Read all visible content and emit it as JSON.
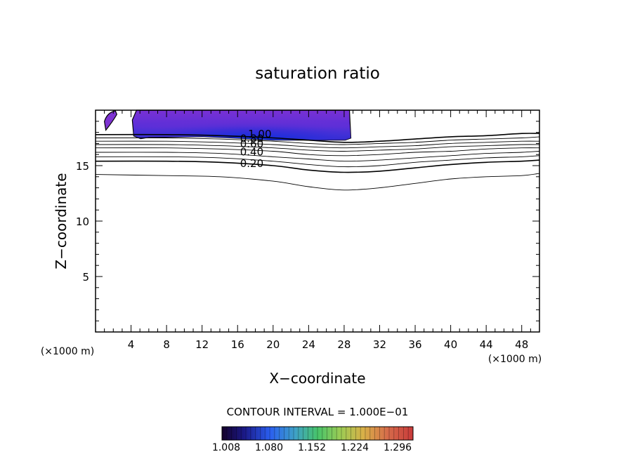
{
  "chart_data": {
    "type": "contour",
    "title": "saturation ratio",
    "xlabel": "X−coordinate",
    "ylabel": "Z−coordinate",
    "x_unit": "(×1000 m)",
    "y_unit": "(×1000 m)",
    "xlim": [
      0,
      50
    ],
    "ylim": [
      0,
      20
    ],
    "x_ticks": [
      "4",
      "8",
      "12",
      "16",
      "20",
      "24",
      "28",
      "32",
      "36",
      "40",
      "44",
      "48"
    ],
    "y_ticks": [
      "5",
      "10",
      "15"
    ],
    "contour_interval_label": "CONTOUR INTERVAL = 1.000E−01",
    "colorbar_ticks": [
      "1.008",
      "1.080",
      "1.152",
      "1.224",
      "1.296"
    ],
    "contour_labels": [
      "0.20",
      "0.40",
      "0.60",
      "0.80",
      "1.00"
    ],
    "contour_lines": [
      {
        "level": "0.10",
        "points": [
          [
            0,
            14.2
          ],
          [
            8,
            14.1
          ],
          [
            14,
            14.0
          ],
          [
            20,
            13.6
          ],
          [
            24,
            13.1
          ],
          [
            28,
            12.8
          ],
          [
            32,
            13.0
          ],
          [
            36,
            13.4
          ],
          [
            40,
            13.8
          ],
          [
            44,
            14.0
          ],
          [
            48,
            14.1
          ],
          [
            50,
            14.3
          ]
        ]
      },
      {
        "level": "0.20",
        "points": [
          [
            0,
            15.4
          ],
          [
            8,
            15.4
          ],
          [
            14,
            15.3
          ],
          [
            20,
            15.0
          ],
          [
            24,
            14.6
          ],
          [
            28,
            14.4
          ],
          [
            32,
            14.5
          ],
          [
            36,
            14.8
          ],
          [
            40,
            15.1
          ],
          [
            44,
            15.3
          ],
          [
            48,
            15.4
          ],
          [
            50,
            15.5
          ]
        ]
      },
      {
        "level": "0.30",
        "points": [
          [
            0,
            15.8
          ],
          [
            8,
            15.8
          ],
          [
            14,
            15.7
          ],
          [
            20,
            15.4
          ],
          [
            24,
            15.1
          ],
          [
            28,
            14.9
          ],
          [
            32,
            15.0
          ],
          [
            36,
            15.3
          ],
          [
            40,
            15.5
          ],
          [
            44,
            15.7
          ],
          [
            48,
            15.8
          ],
          [
            50,
            15.9
          ]
        ]
      },
      {
        "level": "0.40",
        "points": [
          [
            0,
            16.2
          ],
          [
            8,
            16.2
          ],
          [
            14,
            16.1
          ],
          [
            20,
            15.8
          ],
          [
            24,
            15.6
          ],
          [
            28,
            15.4
          ],
          [
            32,
            15.5
          ],
          [
            36,
            15.7
          ],
          [
            40,
            15.9
          ],
          [
            44,
            16.1
          ],
          [
            48,
            16.2
          ],
          [
            50,
            16.3
          ]
        ]
      },
      {
        "level": "0.50",
        "points": [
          [
            0,
            16.6
          ],
          [
            8,
            16.6
          ],
          [
            14,
            16.5
          ],
          [
            20,
            16.3
          ],
          [
            24,
            16.0
          ],
          [
            28,
            15.9
          ],
          [
            32,
            16.0
          ],
          [
            36,
            16.2
          ],
          [
            40,
            16.3
          ],
          [
            44,
            16.5
          ],
          [
            48,
            16.6
          ],
          [
            50,
            16.6
          ]
        ]
      },
      {
        "level": "0.60",
        "points": [
          [
            0,
            16.9
          ],
          [
            8,
            16.9
          ],
          [
            14,
            16.8
          ],
          [
            20,
            16.6
          ],
          [
            24,
            16.4
          ],
          [
            28,
            16.3
          ],
          [
            32,
            16.4
          ],
          [
            36,
            16.5
          ],
          [
            40,
            16.7
          ],
          [
            44,
            16.8
          ],
          [
            48,
            16.9
          ],
          [
            50,
            16.9
          ]
        ]
      },
      {
        "level": "0.70",
        "points": [
          [
            0,
            17.2
          ],
          [
            8,
            17.2
          ],
          [
            14,
            17.1
          ],
          [
            20,
            16.9
          ],
          [
            24,
            16.7
          ],
          [
            28,
            16.6
          ],
          [
            32,
            16.7
          ],
          [
            36,
            16.8
          ],
          [
            40,
            17.0
          ],
          [
            44,
            17.1
          ],
          [
            48,
            17.2
          ],
          [
            50,
            17.2
          ]
        ]
      },
      {
        "level": "0.80",
        "points": [
          [
            0,
            17.5
          ],
          [
            8,
            17.5
          ],
          [
            14,
            17.4
          ],
          [
            20,
            17.2
          ],
          [
            24,
            17.0
          ],
          [
            28,
            16.9
          ],
          [
            32,
            17.0
          ],
          [
            36,
            17.1
          ],
          [
            40,
            17.3
          ],
          [
            44,
            17.4
          ],
          [
            48,
            17.5
          ],
          [
            50,
            17.6
          ]
        ]
      },
      {
        "level": "0.90",
        "points": [
          [
            0,
            17.8
          ],
          [
            8,
            17.8
          ],
          [
            14,
            17.7
          ],
          [
            20,
            17.5
          ],
          [
            24,
            17.3
          ],
          [
            28,
            17.1
          ],
          [
            32,
            17.2
          ],
          [
            36,
            17.4
          ],
          [
            40,
            17.6
          ],
          [
            44,
            17.7
          ],
          [
            48,
            17.9
          ],
          [
            50,
            17.9
          ]
        ]
      }
    ],
    "filled_region": {
      "x_range": [
        4.3,
        28.6
      ],
      "z_range": [
        17.3,
        20
      ],
      "values_range": [
        1.008,
        1.296
      ]
    },
    "filled_blob": {
      "x_range": [
        1.0,
        2.4
      ],
      "z_range": [
        18.2,
        20
      ]
    },
    "colors": {
      "low": "#220044",
      "mid_low": "#1a3cff",
      "mid": "#37c06a",
      "mid_high": "#d9c04a",
      "high": "#d24a4a",
      "fill_outer": "#7d33d1",
      "fill_inner": "#1d2cc8"
    }
  }
}
